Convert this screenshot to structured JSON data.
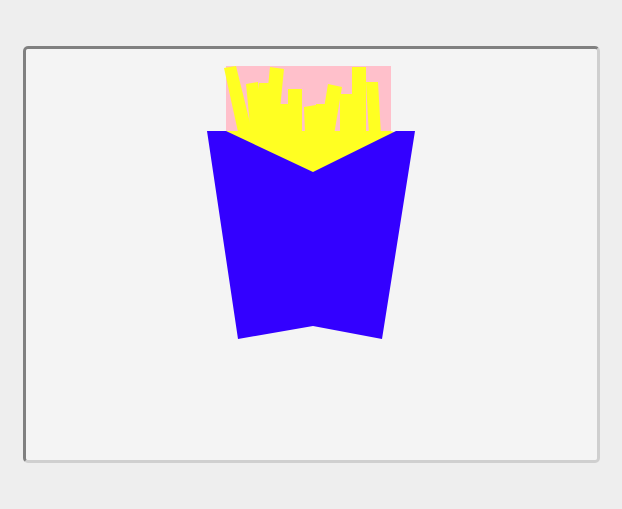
{
  "canvas": {
    "background": "#f4f4f4",
    "border_dark": "#808080",
    "border_light": "#cfcfcf"
  },
  "drawing": {
    "subject": "french-fries-icon",
    "colors": {
      "backdrop": "#ffc0cb",
      "fries": "#ffff22",
      "container": "#3300ff"
    }
  }
}
